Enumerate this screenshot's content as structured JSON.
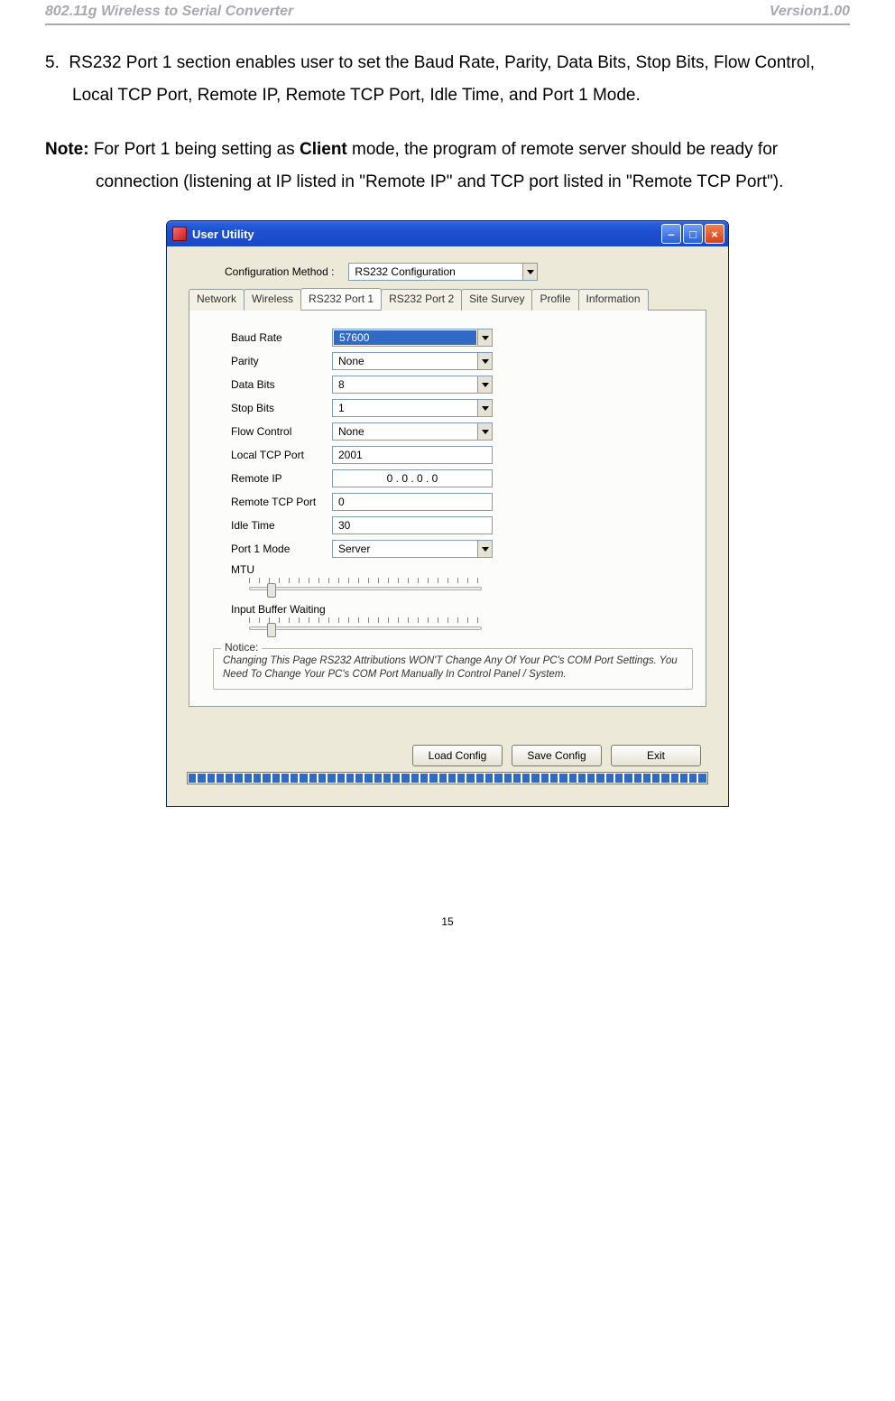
{
  "header": {
    "left": "802.11g Wireless to Serial Converter",
    "right": "Version1.00"
  },
  "list_item": {
    "num": "5.",
    "text": "RS232 Port 1 section enables user to set the Baud Rate, Parity, Data Bits, Stop Bits, Flow Control, Local TCP Port, Remote IP, Remote TCP Port, Idle Time, and Port 1 Mode."
  },
  "note": {
    "label": "Note:",
    "text1": " For Port 1 being setting as ",
    "bold": "Client",
    "text2": " mode, the program of remote server should be ready for connection (listening at IP listed in \"Remote IP\" and TCP port listed in \"Remote TCP Port\")."
  },
  "window": {
    "title": "User Utility",
    "cfg_label": "Configuration Method :",
    "cfg_value": "RS232 Configuration",
    "tabs": [
      "Network",
      "Wireless",
      "RS232 Port 1",
      "RS232 Port 2",
      "Site Survey",
      "Profile",
      "Information"
    ],
    "active_tab": 2,
    "fields": {
      "baud": {
        "label": "Baud Rate",
        "value": "57600",
        "combo": true,
        "selected": true
      },
      "parity": {
        "label": "Parity",
        "value": "None",
        "combo": true
      },
      "databits": {
        "label": "Data Bits",
        "value": "8",
        "combo": true
      },
      "stopbits": {
        "label": "Stop Bits",
        "value": "1",
        "combo": true
      },
      "flow": {
        "label": "Flow Control",
        "value": "None",
        "combo": true
      },
      "localtcp": {
        "label": "Local TCP Port",
        "value": "2001"
      },
      "remoteip": {
        "label": "Remote IP",
        "value": "0   .   0   .   0   .   0",
        "center": true
      },
      "remotetcp": {
        "label": "Remote TCP Port",
        "value": "0"
      },
      "idle": {
        "label": "Idle Time",
        "value": "30"
      },
      "mode": {
        "label": "Port 1 Mode",
        "value": "Server",
        "combo": true
      }
    },
    "mtu_label": "MTU",
    "buffer_label": "Input Buffer Waiting",
    "notice_legend": "Notice:",
    "notice_text": "Changing This Page RS232 Attributions  WON'T Change Any Of Your PC's COM Port Settings. You Need  To Change Your PC's COM Port Manually In Control Panel / System.",
    "buttons": {
      "load": "Load Config",
      "save": "Save Config",
      "exit": "Exit"
    }
  },
  "page_number": "15"
}
